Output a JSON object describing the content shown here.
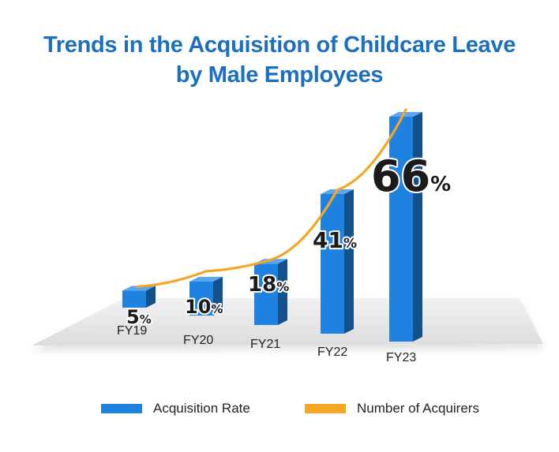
{
  "title": {
    "line1": "Trends in the Acquisition of Childcare Leave",
    "line2": "by Male Employees"
  },
  "colors": {
    "title": "#1a6fc1",
    "bar": "#1f82e0",
    "line": "#f5a623",
    "platform": "#e9e9eb"
  },
  "chart_data": {
    "type": "bar",
    "title": "Trends in the Acquisition of Childcare Leave by Male Employees",
    "categories": [
      "FY19",
      "FY20",
      "FY21",
      "FY22",
      "FY23"
    ],
    "series": [
      {
        "name": "Acquisition Rate",
        "type": "bar",
        "unit": "%",
        "values": [
          5,
          10,
          18,
          41,
          66
        ],
        "labels": [
          "5",
          "10",
          "18",
          "41",
          "66"
        ]
      },
      {
        "name": "Number of Acquirers",
        "type": "line",
        "trend": [
          5,
          10,
          18,
          41,
          66
        ]
      }
    ],
    "ylim": [
      0,
      70
    ],
    "legend": "bottom",
    "grid": false
  },
  "legend": {
    "items": [
      {
        "label": "Acquisition Rate",
        "color": "#1f82e0"
      },
      {
        "label": "Number of Acquirers",
        "color": "#f5a623"
      }
    ]
  }
}
